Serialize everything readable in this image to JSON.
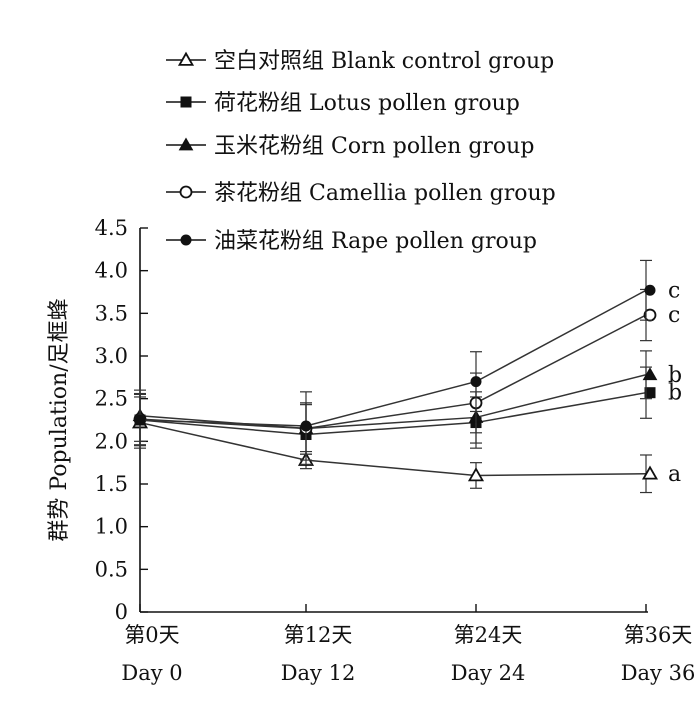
{
  "chart_data": {
    "type": "line",
    "title": "",
    "ylabel": "群势 Population/足框蜂",
    "xlabel": "",
    "ylim": [
      0,
      4.5
    ],
    "yticks": [
      "0",
      "0.5",
      "1.0",
      "1.5",
      "2.0",
      "2.5",
      "3.0",
      "3.5",
      "4.0",
      "4.5"
    ],
    "categories": [
      {
        "cn": "第0天",
        "en": "Day 0"
      },
      {
        "cn": "第12天",
        "en": "Day 12"
      },
      {
        "cn": "第24天",
        "en": "Day 24"
      },
      {
        "cn": "第36天",
        "en": "Day 36"
      }
    ],
    "x": [
      0,
      12,
      24,
      36
    ],
    "legend_position": "top",
    "series": [
      {
        "name": "空白对照组 Blank control group",
        "marker": "open-triangle",
        "values": [
          2.22,
          1.78,
          1.6,
          1.62
        ],
        "errors": [
          0.3,
          0.1,
          0.15,
          0.22
        ],
        "significance": "a"
      },
      {
        "name": "荷花粉组 Lotus pollen group",
        "marker": "filled-square",
        "values": [
          2.25,
          2.08,
          2.22,
          2.57
        ],
        "errors": [
          0.3,
          0.35,
          0.3,
          0.3
        ],
        "significance": "b"
      },
      {
        "name": "玉米花粉组 Corn pollen group",
        "marker": "filled-triangle",
        "values": [
          2.3,
          2.15,
          2.28,
          2.78
        ],
        "errors": [
          0.3,
          0.3,
          0.3,
          0.28
        ],
        "significance": "b"
      },
      {
        "name": "茶花粉组 Camellia pollen group",
        "marker": "open-circle",
        "values": [
          2.26,
          2.15,
          2.45,
          3.48
        ],
        "errors": [
          0.3,
          0.3,
          0.35,
          0.3
        ],
        "significance": "c"
      },
      {
        "name": "油菜花粉组 Rape pollen group",
        "marker": "filled-circle",
        "values": [
          2.25,
          2.18,
          2.7,
          3.77
        ],
        "errors": [
          0.3,
          0.4,
          0.35,
          0.35
        ],
        "significance": "c"
      }
    ]
  }
}
